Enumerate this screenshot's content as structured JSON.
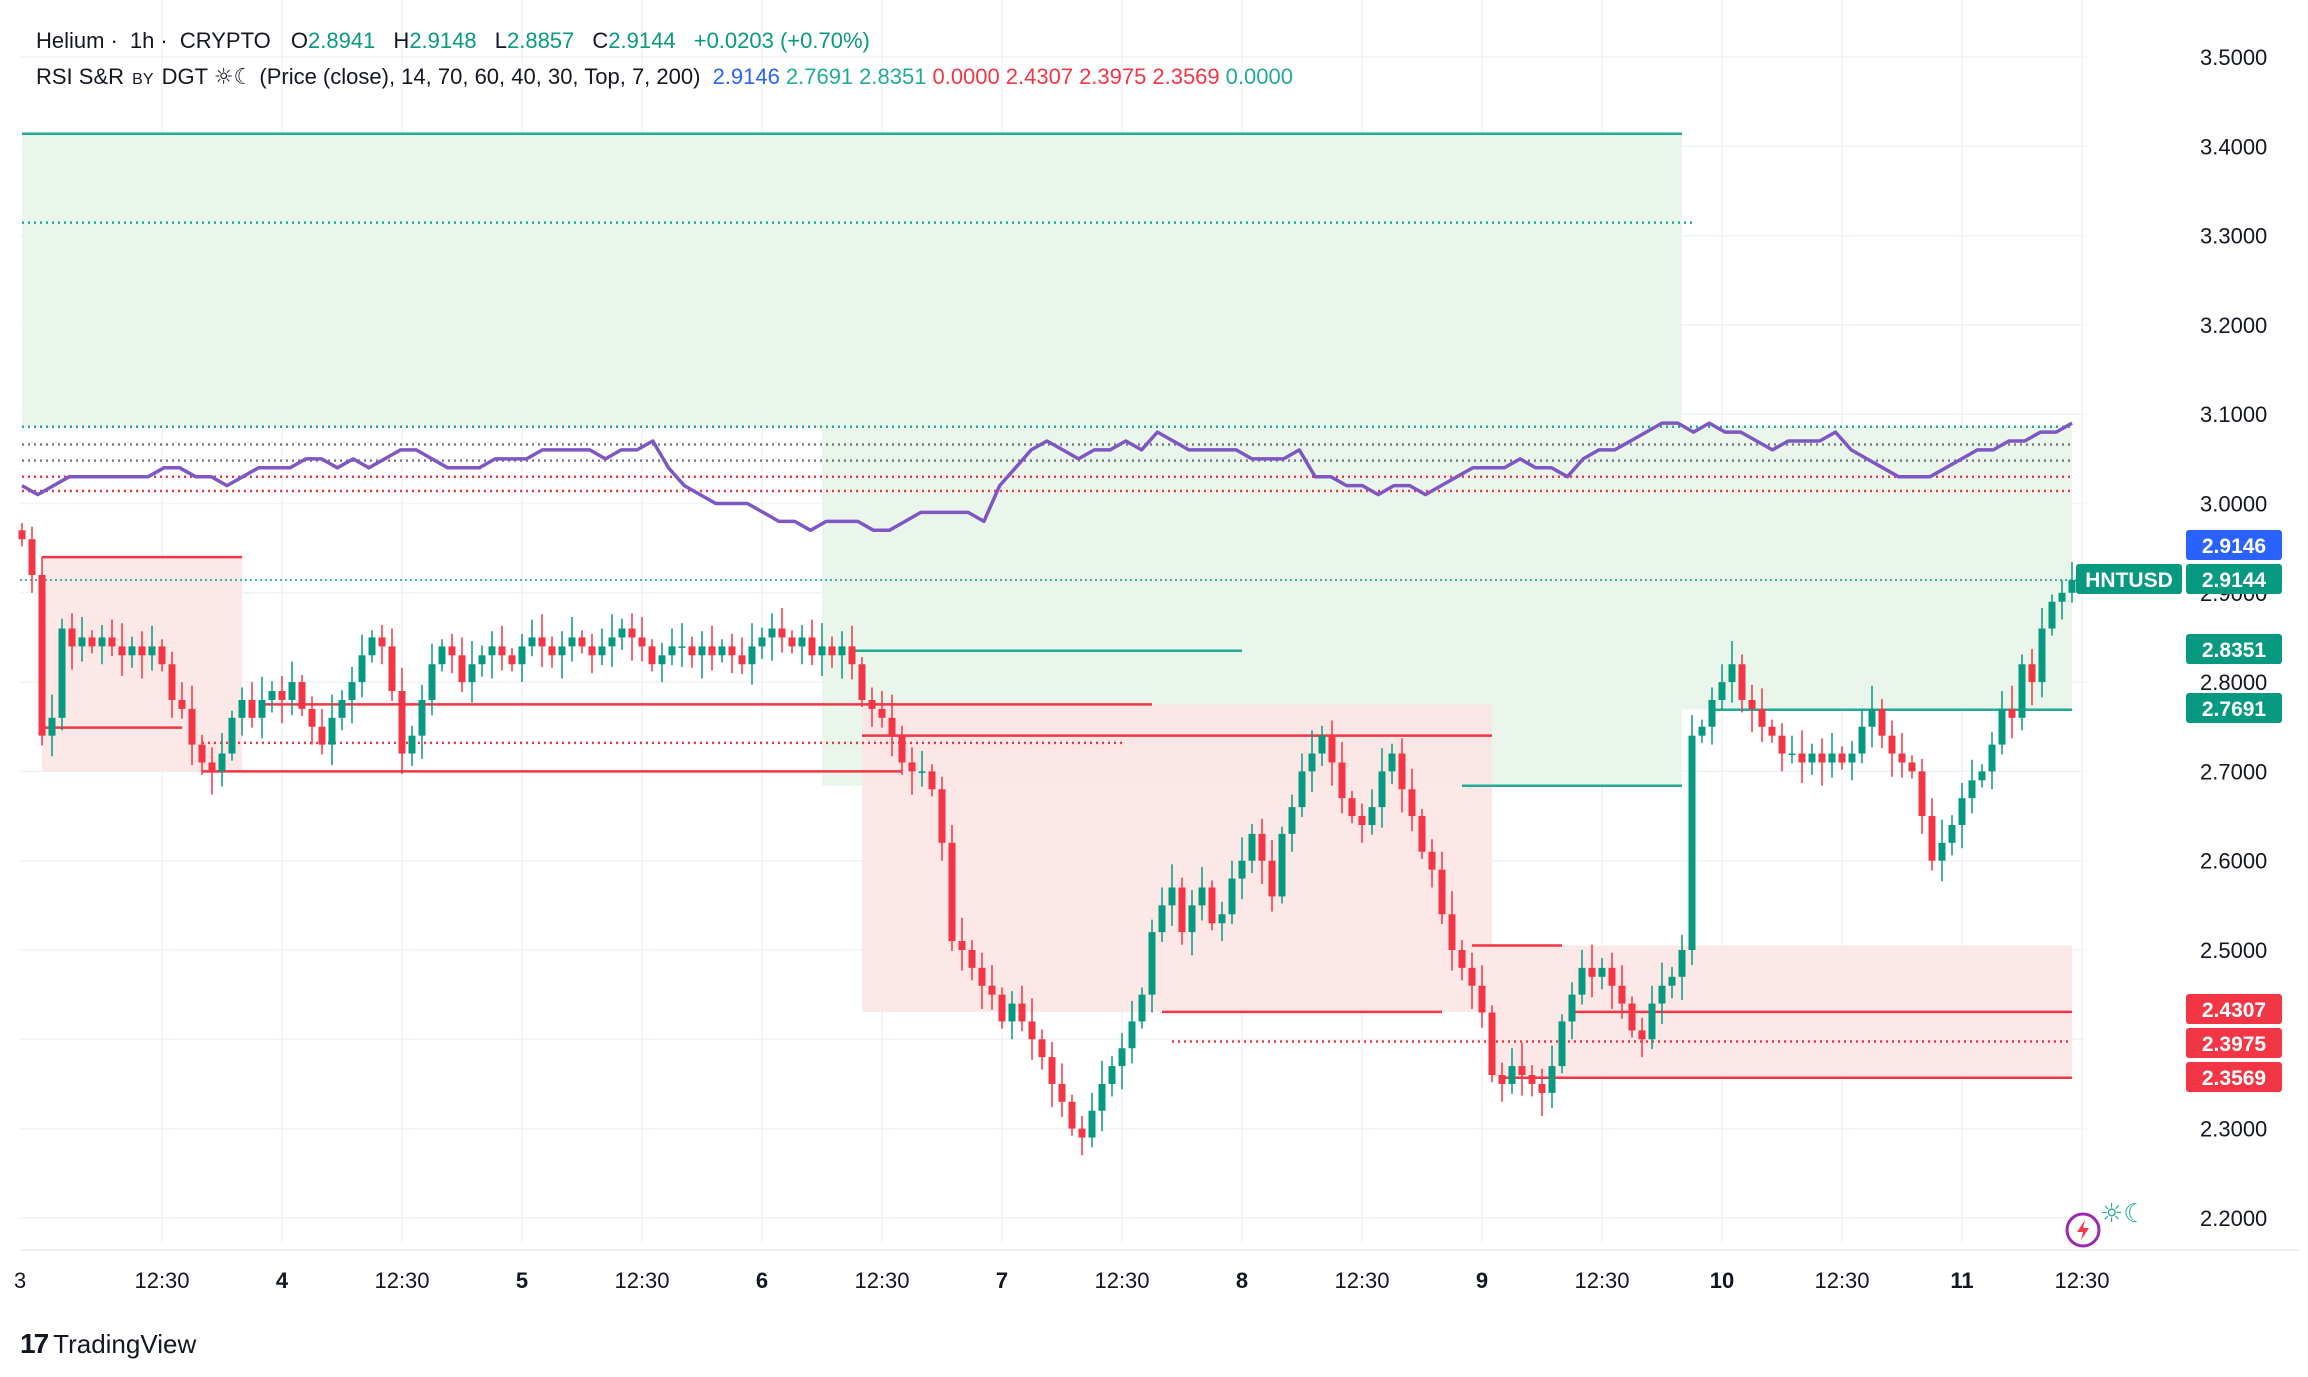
{
  "header": {
    "symbol_name": "Helium",
    "interval": "1h",
    "exchange": "CRYPTO",
    "open_label": "O",
    "open": "2.8941",
    "high_label": "H",
    "high": "2.9148",
    "low_label": "L",
    "low": "2.8857",
    "close_label": "C",
    "close": "2.9144",
    "change": "+0.0203 (+0.70%)"
  },
  "indicator": {
    "name": "RSI S&R",
    "by": "BY",
    "author": "DGT",
    "glyph": "☼☾",
    "params": "(Price (close), 14, 70, 60, 40, 30, Top, 7, 200)",
    "values": [
      "2.9146",
      "2.7691",
      "2.8351",
      "0.0000",
      "2.4307",
      "2.3975",
      "2.3569",
      "0.0000"
    ],
    "value_colors": [
      "#2962ff",
      "#22ab94",
      "#22ab94",
      "#f23645",
      "#f23645",
      "#f23645",
      "#f23645",
      "#22ab94"
    ]
  },
  "price_tags": [
    {
      "value": 2.9146,
      "label": "2.9146",
      "color": "#2962ff"
    },
    {
      "value": 2.9144,
      "label": "2.9144",
      "color": "#089981",
      "symbol": "HNTUSD"
    },
    {
      "value": 2.8351,
      "label": "2.8351",
      "color": "#089981"
    },
    {
      "value": 2.7691,
      "label": "2.7691",
      "color": "#089981"
    },
    {
      "value": 2.4307,
      "label": "2.4307",
      "color": "#f23645"
    },
    {
      "value": 2.3975,
      "label": "2.3975",
      "color": "#f23645"
    },
    {
      "value": 2.3569,
      "label": "2.3569",
      "color": "#f23645"
    }
  ],
  "colors": {
    "up": "#089981",
    "down": "#f23645",
    "rsi_line": "#7e57c2",
    "support_fill": "#e8f5e9",
    "resistance_fill": "#fde4e4",
    "grid": "#f0f3fa"
  },
  "branding": {
    "name": "TradingView"
  },
  "chart_data": {
    "type": "candlestick",
    "title": "Helium · 1h · CRYPTO",
    "ylim": [
      2.17,
      3.52
    ],
    "y_ticks": [
      2.2,
      2.3,
      2.4,
      2.5,
      2.6,
      2.7,
      2.8,
      2.9,
      3.0,
      3.1,
      3.2,
      3.3,
      3.4,
      3.5
    ],
    "y_tick_labels": [
      "2.2000",
      "2.3000",
      "2.4000",
      "2.5000",
      "2.6000",
      "2.7000",
      "2.8000",
      "2.9000",
      "3.0000",
      "3.1000",
      "3.2000",
      "3.3000",
      "3.4000",
      "3.5000"
    ],
    "x_ticks": [
      {
        "bar": 12,
        "label": "12:30"
      },
      {
        "bar": 24,
        "label": "4"
      },
      {
        "bar": 36,
        "label": "12:30"
      },
      {
        "bar": 48,
        "label": "5"
      },
      {
        "bar": 60,
        "label": "12:30"
      },
      {
        "bar": 72,
        "label": "6"
      },
      {
        "bar": 84,
        "label": "12:30"
      },
      {
        "bar": 96,
        "label": "7"
      },
      {
        "bar": 108,
        "label": "12:30"
      },
      {
        "bar": 120,
        "label": "8"
      },
      {
        "bar": 132,
        "label": "12:30"
      },
      {
        "bar": 144,
        "label": "9"
      },
      {
        "bar": 156,
        "label": "12:30"
      },
      {
        "bar": 168,
        "label": "10"
      },
      {
        "bar": 180,
        "label": "12:30"
      },
      {
        "bar": 192,
        "label": "11"
      },
      {
        "bar": 204,
        "label": "12:30"
      }
    ],
    "first_tick_label": "3",
    "closes": [
      2.96,
      2.92,
      2.74,
      2.76,
      2.86,
      2.84,
      2.85,
      2.84,
      2.85,
      2.84,
      2.83,
      2.84,
      2.83,
      2.84,
      2.82,
      2.78,
      2.77,
      2.73,
      2.71,
      2.7,
      2.72,
      2.76,
      2.78,
      2.76,
      2.78,
      2.79,
      2.78,
      2.8,
      2.77,
      2.75,
      2.73,
      2.76,
      2.78,
      2.8,
      2.83,
      2.85,
      2.84,
      2.79,
      2.72,
      2.74,
      2.78,
      2.82,
      2.84,
      2.83,
      2.8,
      2.82,
      2.83,
      2.84,
      2.83,
      2.82,
      2.84,
      2.85,
      2.84,
      2.83,
      2.84,
      2.85,
      2.84,
      2.83,
      2.84,
      2.85,
      2.86,
      2.85,
      2.84,
      2.82,
      2.83,
      2.84,
      2.84,
      2.83,
      2.84,
      2.83,
      2.84,
      2.83,
      2.82,
      2.84,
      2.85,
      2.86,
      2.85,
      2.84,
      2.85,
      2.83,
      2.84,
      2.83,
      2.84,
      2.82,
      2.78,
      2.77,
      2.76,
      2.74,
      2.71,
      2.7,
      2.7,
      2.68,
      2.62,
      2.51,
      2.5,
      2.48,
      2.46,
      2.45,
      2.42,
      2.44,
      2.42,
      2.4,
      2.38,
      2.35,
      2.33,
      2.3,
      2.29,
      2.32,
      2.35,
      2.37,
      2.39,
      2.42,
      2.45,
      2.52,
      2.55,
      2.57,
      2.52,
      2.55,
      2.57,
      2.53,
      2.54,
      2.58,
      2.6,
      2.63,
      2.6,
      2.56,
      2.63,
      2.66,
      2.7,
      2.72,
      2.74,
      2.71,
      2.67,
      2.65,
      2.64,
      2.66,
      2.7,
      2.72,
      2.68,
      2.65,
      2.61,
      2.59,
      2.54,
      2.5,
      2.48,
      2.46,
      2.43,
      2.36,
      2.35,
      2.37,
      2.36,
      2.35,
      2.34,
      2.37,
      2.42,
      2.45,
      2.48,
      2.47,
      2.48,
      2.46,
      2.44,
      2.41,
      2.4,
      2.44,
      2.46,
      2.47,
      2.5,
      2.74,
      2.75,
      2.78,
      2.8,
      2.82,
      2.78,
      2.77,
      2.75,
      2.74,
      2.72,
      2.72,
      2.71,
      2.72,
      2.71,
      2.72,
      2.71,
      2.72,
      2.75,
      2.77,
      2.74,
      2.72,
      2.71,
      2.7,
      2.65,
      2.6,
      2.62,
      2.64,
      2.67,
      2.69,
      2.7,
      2.73,
      2.77,
      2.76,
      2.82,
      2.8,
      2.86,
      2.89,
      2.9,
      2.9144
    ],
    "rsi_overlay": [
      3.02,
      3.01,
      3.02,
      3.03,
      3.03,
      3.03,
      3.03,
      3.03,
      3.03,
      3.04,
      3.04,
      3.03,
      3.03,
      3.02,
      3.03,
      3.04,
      3.04,
      3.04,
      3.05,
      3.05,
      3.04,
      3.05,
      3.04,
      3.05,
      3.06,
      3.06,
      3.05,
      3.04,
      3.04,
      3.04,
      3.05,
      3.05,
      3.05,
      3.06,
      3.06,
      3.06,
      3.06,
      3.05,
      3.06,
      3.06,
      3.07,
      3.04,
      3.02,
      3.01,
      3.0,
      3.0,
      3.0,
      2.99,
      2.98,
      2.98,
      2.97,
      2.98,
      2.98,
      2.98,
      2.97,
      2.97,
      2.98,
      2.99,
      2.99,
      2.99,
      2.99,
      2.98,
      3.02,
      3.04,
      3.06,
      3.07,
      3.06,
      3.05,
      3.06,
      3.06,
      3.07,
      3.06,
      3.08,
      3.07,
      3.06,
      3.06,
      3.06,
      3.06,
      3.05,
      3.05,
      3.05,
      3.06,
      3.03,
      3.03,
      3.02,
      3.02,
      3.01,
      3.02,
      3.02,
      3.01,
      3.02,
      3.03,
      3.04,
      3.04,
      3.04,
      3.05,
      3.04,
      3.04,
      3.03,
      3.05,
      3.06,
      3.06,
      3.07,
      3.08,
      3.09,
      3.09,
      3.08,
      3.09,
      3.08,
      3.08,
      3.07,
      3.06,
      3.07,
      3.07,
      3.07,
      3.08,
      3.06,
      3.05,
      3.04,
      3.03,
      3.03,
      3.03,
      3.04,
      3.05,
      3.06,
      3.06,
      3.07,
      3.07,
      3.08,
      3.08,
      3.09
    ],
    "support_resistance_levels": [
      {
        "value": 3.414,
        "style": "solid",
        "color": "#22ab94",
        "from_bar": 0,
        "to_bar": 166
      },
      {
        "value": 3.3145,
        "style": "dotted",
        "color": "#22ab94",
        "from_bar": 0,
        "to_bar": 167
      },
      {
        "value": 3.086,
        "style": "dotted",
        "color": "#22ab94",
        "from_bar": 0,
        "to_bar": 205
      },
      {
        "value": 3.066,
        "style": "dotted",
        "color": "#787b86",
        "from_bar": 0,
        "to_bar": 205
      },
      {
        "value": 3.048,
        "style": "dotted",
        "color": "#787b86",
        "from_bar": 0,
        "to_bar": 205
      },
      {
        "value": 3.03,
        "style": "dotted",
        "color": "#f23645",
        "from_bar": 0,
        "to_bar": 205
      },
      {
        "value": 3.014,
        "style": "dotted",
        "color": "#f23645",
        "from_bar": 0,
        "to_bar": 205
      },
      {
        "value": 2.8351,
        "style": "solid",
        "color": "#22ab94",
        "from_bar": 83,
        "to_bar": 122
      },
      {
        "value": 2.7691,
        "style": "solid",
        "color": "#22ab94",
        "from_bar": 169,
        "to_bar": 205
      },
      {
        "value": 2.684,
        "style": "solid",
        "color": "#22ab94",
        "from_bar": 144,
        "to_bar": 166
      },
      {
        "value": 2.94,
        "style": "solid",
        "color": "#f23645",
        "from_bar": 2,
        "to_bar": 22
      },
      {
        "value": 2.749,
        "style": "solid",
        "color": "#f23645",
        "from_bar": 2,
        "to_bar": 16
      },
      {
        "value": 2.7,
        "style": "solid",
        "color": "#f23645",
        "from_bar": 18,
        "to_bar": 88
      },
      {
        "value": 2.775,
        "style": "solid",
        "color": "#f23645",
        "from_bar": 24,
        "to_bar": 113
      },
      {
        "value": 2.74,
        "style": "solid",
        "color": "#f23645",
        "from_bar": 84,
        "to_bar": 147
      },
      {
        "value": 2.732,
        "style": "dotted",
        "color": "#f23645",
        "from_bar": 18,
        "to_bar": 110
      },
      {
        "value": 2.505,
        "style": "solid",
        "color": "#f23645",
        "from_bar": 145,
        "to_bar": 154
      },
      {
        "value": 2.4307,
        "style": "solid",
        "color": "#f23645",
        "from_bar": 114,
        "to_bar": 142
      },
      {
        "value": 2.4307,
        "style": "solid",
        "color": "#f23645",
        "from_bar": 155,
        "to_bar": 205
      },
      {
        "value": 2.3975,
        "style": "dotted",
        "color": "#f23645",
        "from_bar": 115,
        "to_bar": 205
      },
      {
        "value": 2.3569,
        "style": "solid",
        "color": "#f23645",
        "from_bar": 148,
        "to_bar": 205
      }
    ],
    "grid": true,
    "current_price": 2.9144
  }
}
